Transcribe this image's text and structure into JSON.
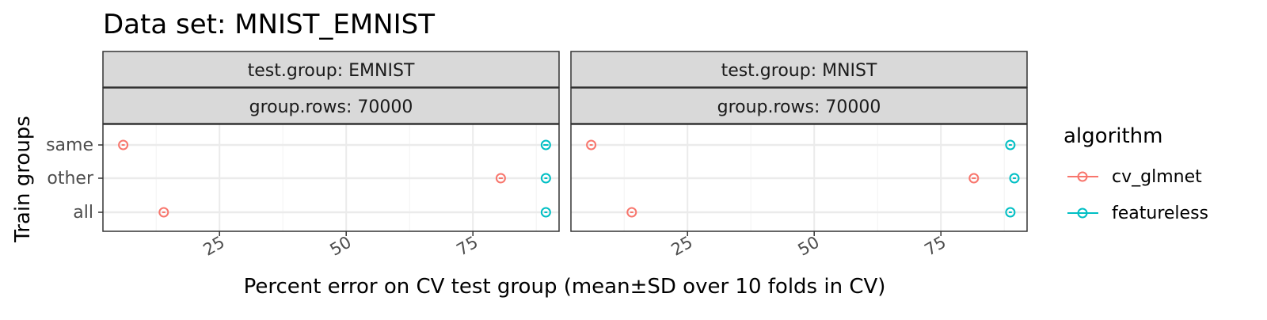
{
  "chart_data": {
    "type": "scatter",
    "title": "Data set: MNIST_EMNIST",
    "xlabel": "Percent error on CV test group (mean±SD over 10 folds in CV)",
    "ylabel": "Train groups",
    "xlim": [
      2,
      92
    ],
    "x_ticks": [
      "25",
      "50",
      "75"
    ],
    "y_categories": [
      "same",
      "other",
      "all"
    ],
    "grid": true,
    "legend": {
      "title": "algorithm",
      "position": "right",
      "items": [
        "cv_glmnet",
        "featureless"
      ]
    },
    "colors": {
      "cv_glmnet": "#F8766D",
      "featureless": "#00BFC4"
    },
    "panels": [
      {
        "strip1": "test.group: EMNIST",
        "strip2": "group.rows: 70000",
        "series": [
          {
            "name": "cv_glmnet",
            "points": [
              {
                "y": "same",
                "x": 6.0,
                "sd": 0.3
              },
              {
                "y": "other",
                "x": 80.5,
                "sd": 0.4
              },
              {
                "y": "all",
                "x": 14.0,
                "sd": 0.3
              }
            ]
          },
          {
            "name": "featureless",
            "points": [
              {
                "y": "same",
                "x": 89.4,
                "sd": 0.5
              },
              {
                "y": "other",
                "x": 89.4,
                "sd": 0.3
              },
              {
                "y": "all",
                "x": 89.4,
                "sd": 0.3
              }
            ]
          }
        ]
      },
      {
        "strip1": "test.group: MNIST",
        "strip2": "group.rows: 70000",
        "series": [
          {
            "name": "cv_glmnet",
            "points": [
              {
                "y": "same",
                "x": 6.0,
                "sd": 0.3
              },
              {
                "y": "other",
                "x": 81.5,
                "sd": 0.4
              },
              {
                "y": "all",
                "x": 14.0,
                "sd": 0.3
              }
            ]
          },
          {
            "name": "featureless",
            "points": [
              {
                "y": "same",
                "x": 88.7,
                "sd": 0.3
              },
              {
                "y": "other",
                "x": 89.5,
                "sd": 0.3
              },
              {
                "y": "all",
                "x": 88.7,
                "sd": 0.3
              }
            ]
          }
        ]
      }
    ]
  }
}
